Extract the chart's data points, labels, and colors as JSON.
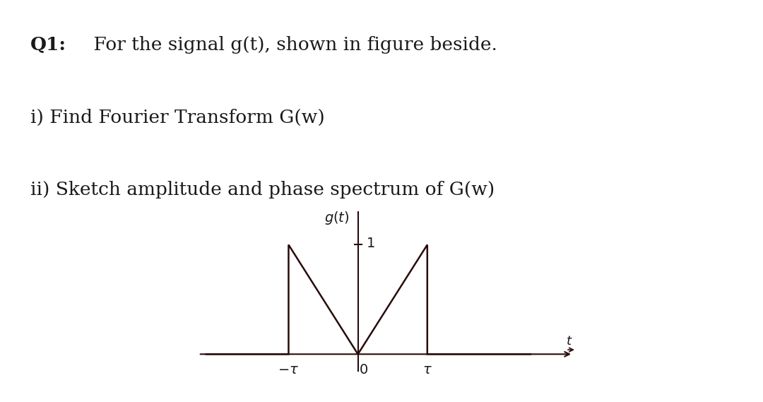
{
  "line1_bold": "Q1:",
  "line1_rest": " For the signal g(t), shown in figure beside.",
  "line2": "i) Find Fourier Transform G(w)",
  "line3": "ii) Sketch amplitude and phase spectrum of G(w)",
  "line_color": "#2a0a0a",
  "text_color": "#1a1a1a",
  "background_color": "#ffffff",
  "tau": 1.0,
  "fig_width": 10.8,
  "fig_height": 5.69,
  "body_fontsize": 19,
  "tick_fontsize": 14,
  "graph_label_fontsize": 13
}
